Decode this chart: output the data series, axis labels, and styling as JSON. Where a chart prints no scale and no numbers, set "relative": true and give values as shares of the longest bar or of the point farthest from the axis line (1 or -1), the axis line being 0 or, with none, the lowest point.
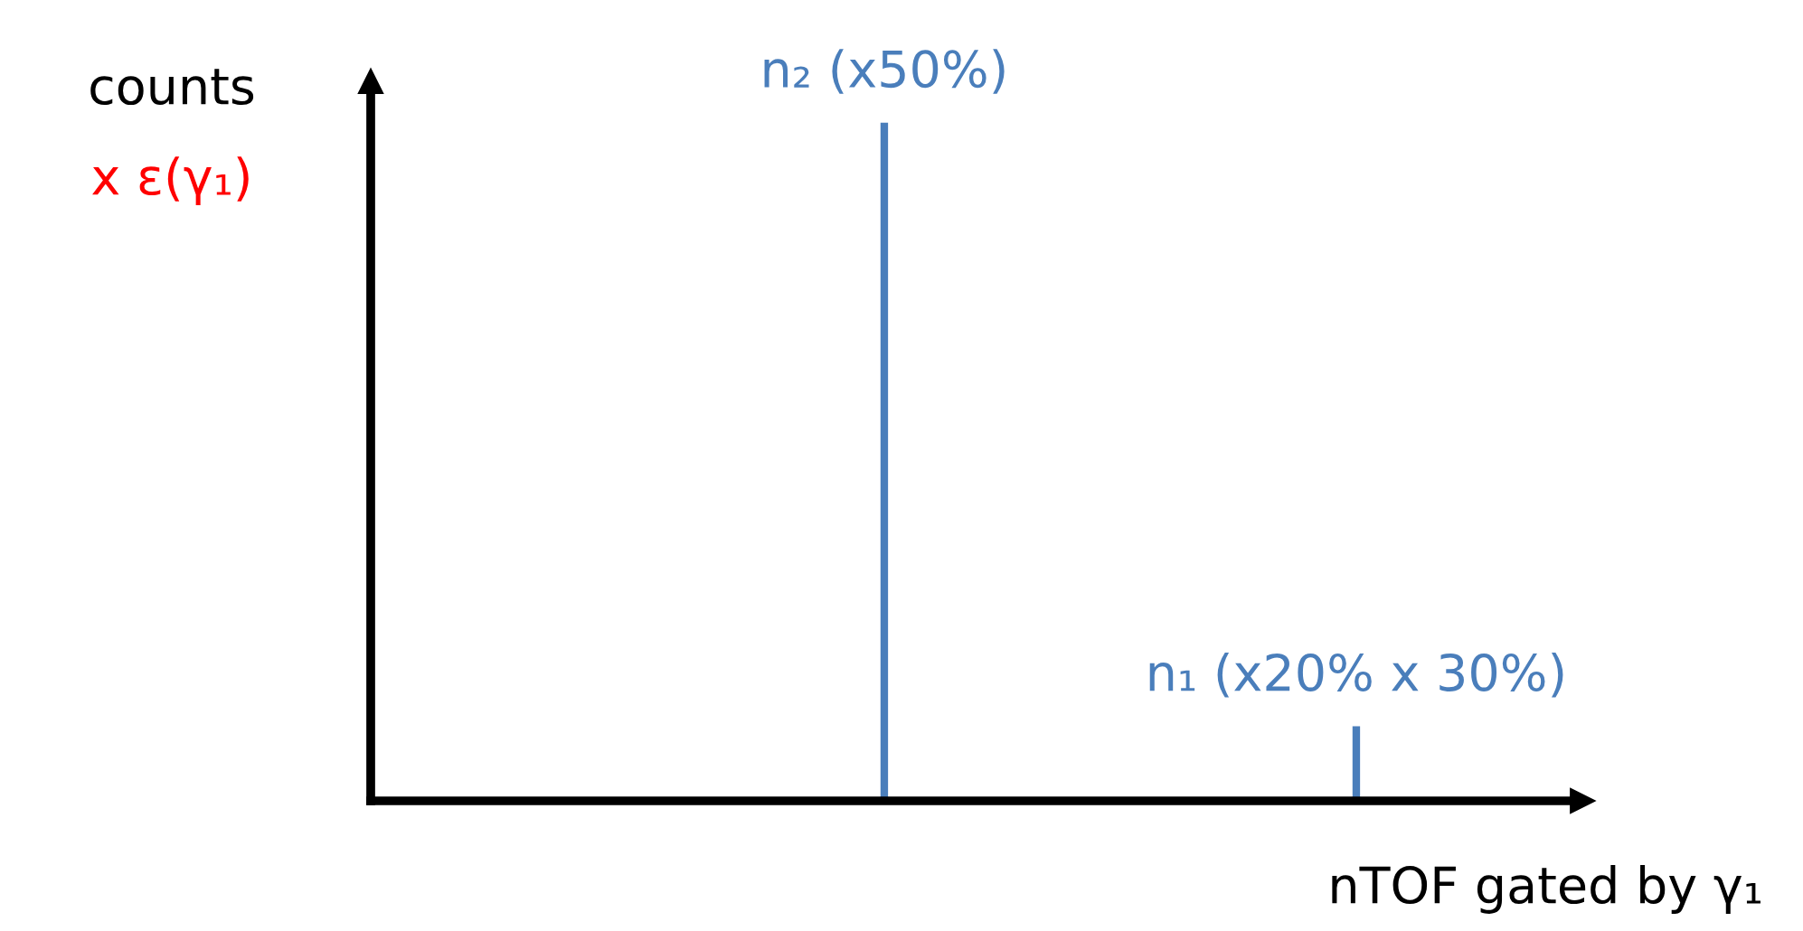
{
  "chart_data": {
    "type": "bar",
    "relative": true,
    "xlabel": "nTOF gated by γ₁",
    "ylabel": "counts x ε(γ₁)",
    "categories": [
      null,
      null
    ],
    "values": [
      1,
      0.11
    ],
    "color": "#4a7ebb",
    "annotations": [
      "n₂ (x50%)",
      "n₁ (x20% x 30%)"
    ],
    "grid": false
  }
}
